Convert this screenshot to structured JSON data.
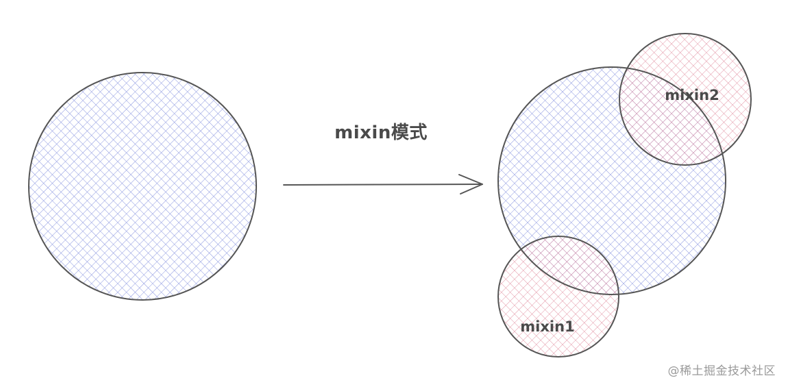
{
  "diagram": {
    "title": "mixin模式",
    "mixin_labels": [
      "mixin2",
      "mixin1"
    ]
  },
  "watermark": "@稀土掘金技术社区",
  "colors": {
    "base_hatch": "#8a96e0",
    "mixin_hatch": "#e08a9c",
    "outline": "#555555",
    "arrow": "#555555",
    "watermark": "#9a9a9a"
  }
}
